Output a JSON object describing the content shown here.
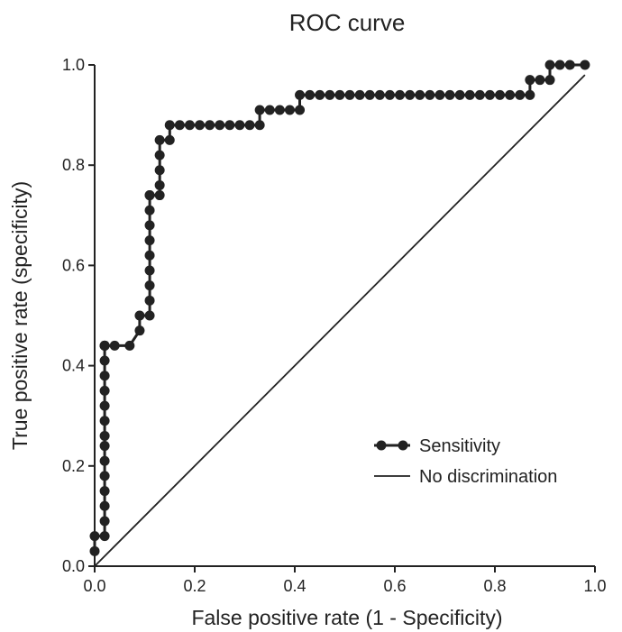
{
  "chart_data": {
    "type": "line",
    "title": "ROC curve",
    "xlabel": "False positive rate (1 - Specificity)",
    "ylabel": "True positive rate (specificity)",
    "xlim": [
      0,
      1.0
    ],
    "ylim": [
      0,
      1.0
    ],
    "x_ticks": [
      "0.0",
      "0.2",
      "0.4",
      "0.6",
      "0.8",
      "1.0"
    ],
    "y_ticks": [
      "0.0",
      "0.2",
      "0.4",
      "0.6",
      "0.8",
      "1.0"
    ],
    "grid": false,
    "legend_position": "bottom-right",
    "series": [
      {
        "name": "Sensitivity",
        "style": "line-with-markers",
        "color": "#222222",
        "x": [
          0.0,
          0.0,
          0.02,
          0.02,
          0.02,
          0.02,
          0.02,
          0.02,
          0.02,
          0.02,
          0.02,
          0.02,
          0.02,
          0.02,
          0.02,
          0.02,
          0.02,
          0.02,
          0.02,
          0.04,
          0.07,
          0.09,
          0.09,
          0.11,
          0.11,
          0.11,
          0.11,
          0.11,
          0.11,
          0.11,
          0.11,
          0.11,
          0.11,
          0.13,
          0.13,
          0.13,
          0.13,
          0.13,
          0.15,
          0.15,
          0.17,
          0.19,
          0.21,
          0.23,
          0.25,
          0.27,
          0.29,
          0.31,
          0.33,
          0.33,
          0.35,
          0.37,
          0.39,
          0.41,
          0.41,
          0.43,
          0.45,
          0.47,
          0.49,
          0.51,
          0.53,
          0.55,
          0.57,
          0.59,
          0.61,
          0.63,
          0.65,
          0.67,
          0.69,
          0.71,
          0.73,
          0.75,
          0.77,
          0.79,
          0.81,
          0.83,
          0.85,
          0.87,
          0.87,
          0.89,
          0.91,
          0.91,
          0.93,
          0.95,
          0.98
        ],
        "y": [
          0.03,
          0.06,
          0.06,
          0.09,
          0.12,
          0.15,
          0.18,
          0.21,
          0.24,
          0.26,
          0.29,
          0.32,
          0.35,
          0.38,
          0.41,
          0.44,
          0.44,
          0.44,
          0.44,
          0.44,
          0.44,
          0.47,
          0.5,
          0.5,
          0.53,
          0.56,
          0.59,
          0.62,
          0.65,
          0.68,
          0.71,
          0.74,
          0.74,
          0.74,
          0.76,
          0.79,
          0.82,
          0.85,
          0.85,
          0.88,
          0.88,
          0.88,
          0.88,
          0.88,
          0.88,
          0.88,
          0.88,
          0.88,
          0.88,
          0.91,
          0.91,
          0.91,
          0.91,
          0.91,
          0.94,
          0.94,
          0.94,
          0.94,
          0.94,
          0.94,
          0.94,
          0.94,
          0.94,
          0.94,
          0.94,
          0.94,
          0.94,
          0.94,
          0.94,
          0.94,
          0.94,
          0.94,
          0.94,
          0.94,
          0.94,
          0.94,
          0.94,
          0.94,
          0.97,
          0.97,
          0.97,
          1.0,
          1.0,
          1.0,
          1.0
        ]
      },
      {
        "name": "No discrimination",
        "style": "line",
        "color": "#222222",
        "x": [
          0.0,
          0.98
        ],
        "y": [
          0.0,
          0.98
        ]
      }
    ]
  }
}
